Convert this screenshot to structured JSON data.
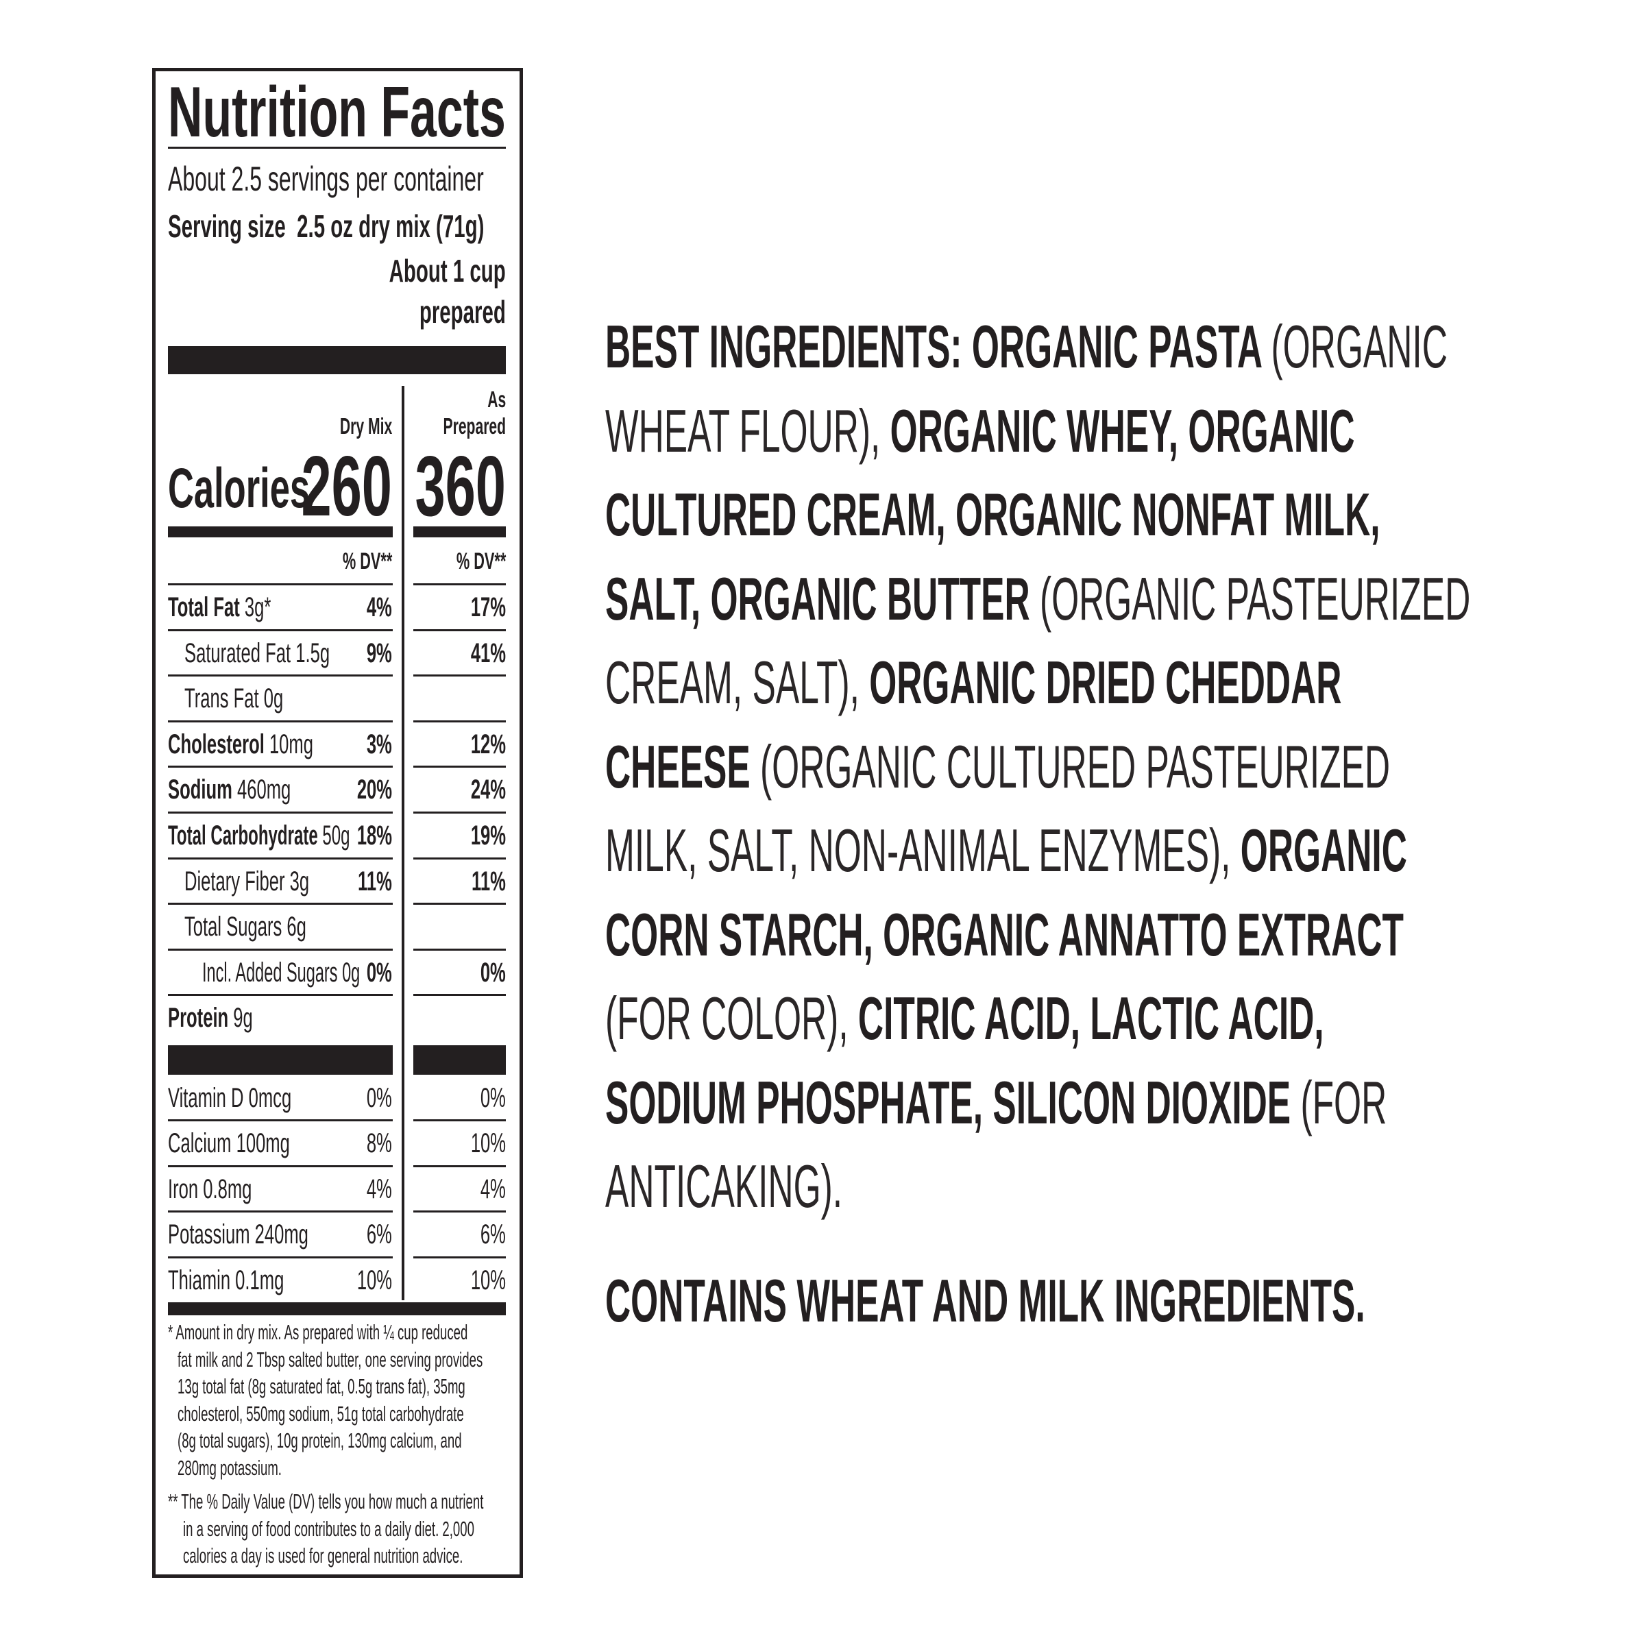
{
  "nutrition": {
    "title": "Nutrition Facts",
    "servings": "About 2.5 servings per container",
    "serving_size_label": "Serving size",
    "serving_size_value": "2.5 oz dry mix (71g)",
    "serving_prepared_1": "About 1 cup",
    "serving_prepared_2": "prepared",
    "col_dry": "Dry Mix",
    "col_prep_1": "As",
    "col_prep_2": "Prepared",
    "calories_label": "Calories",
    "calories_dry": "260",
    "calories_prep": "360",
    "dv_header": "% DV**",
    "rows": [
      {
        "label": "Total Fat",
        "amount": "3g*",
        "dv_dry": "4%",
        "dv_prep": "17%",
        "bold": true,
        "indent": 0
      },
      {
        "label": "Saturated Fat",
        "amount": "1.5g",
        "dv_dry": "9%",
        "dv_prep": "41%",
        "bold": false,
        "indent": 1
      },
      {
        "label": "Trans Fat",
        "amount": "0g",
        "dv_dry": "",
        "dv_prep": "",
        "bold": false,
        "indent": 1
      },
      {
        "label": "Cholesterol",
        "amount": "10mg",
        "dv_dry": "3%",
        "dv_prep": "12%",
        "bold": true,
        "indent": 0
      },
      {
        "label": "Sodium",
        "amount": "460mg",
        "dv_dry": "20%",
        "dv_prep": "24%",
        "bold": true,
        "indent": 0
      },
      {
        "label": "Total Carbohydrate",
        "amount": "50g",
        "dv_dry": "18%",
        "dv_prep": "19%",
        "bold": true,
        "indent": 0
      },
      {
        "label": "Dietary Fiber",
        "amount": "3g",
        "dv_dry": "11%",
        "dv_prep": "11%",
        "bold": false,
        "indent": 1
      },
      {
        "label": "Total Sugars",
        "amount": "6g",
        "dv_dry": "",
        "dv_prep": "",
        "bold": false,
        "indent": 1
      },
      {
        "label": "Incl. Added Sugars",
        "amount": "0g",
        "dv_dry": "0%",
        "dv_prep": "0%",
        "bold": false,
        "indent": 2
      },
      {
        "label": "Protein",
        "amount": "9g",
        "dv_dry": "",
        "dv_prep": "",
        "bold": true,
        "indent": 0
      }
    ],
    "vitamins": [
      {
        "label": "Vitamin D",
        "amount": "0mcg",
        "dv_dry": "0%",
        "dv_prep": "0%"
      },
      {
        "label": "Calcium",
        "amount": "100mg",
        "dv_dry": "8%",
        "dv_prep": "10%"
      },
      {
        "label": "Iron",
        "amount": "0.8mg",
        "dv_dry": "4%",
        "dv_prep": "4%"
      },
      {
        "label": "Potassium",
        "amount": "240mg",
        "dv_dry": "6%",
        "dv_prep": "6%"
      },
      {
        "label": "Thiamin",
        "amount": "0.1mg",
        "dv_dry": "10%",
        "dv_prep": "10%"
      }
    ],
    "footnote_1": [
      "* Amount in dry mix. As prepared with ¼ cup reduced",
      "fat milk and 2 Tbsp salted butter, one serving provides",
      "13g total fat (8g saturated fat, 0.5g trans fat), 35mg",
      "cholesterol, 550mg sodium, 51g total carbohydrate",
      "(8g total sugars), 10g protein, 130mg calcium, and",
      "280mg potassium."
    ],
    "footnote_2": [
      "** The % Daily Value (DV) tells you how much a nutrient",
      "in a serving of food contributes to a daily diet. 2,000",
      "calories a day is used for general nutrition advice."
    ]
  },
  "ingredients": {
    "lines": [
      [
        {
          "t": "BEST INGREDIENTS: ORGANIC PASTA ",
          "b": true
        },
        {
          "t": "(ORGANIC",
          "b": false
        }
      ],
      [
        {
          "t": "WHEAT FLOUR), ",
          "b": false
        },
        {
          "t": "ORGANIC WHEY, ORGANIC",
          "b": true
        }
      ],
      [
        {
          "t": "CULTURED CREAM, ORGANIC NONFAT MILK,",
          "b": true
        }
      ],
      [
        {
          "t": "SALT, ORGANIC BUTTER ",
          "b": true
        },
        {
          "t": "(ORGANIC PASTEURIZED",
          "b": false
        }
      ],
      [
        {
          "t": "CREAM, SALT), ",
          "b": false
        },
        {
          "t": "ORGANIC DRIED CHEDDAR",
          "b": true
        }
      ],
      [
        {
          "t": "CHEESE ",
          "b": true
        },
        {
          "t": "(ORGANIC CULTURED PASTEURIZED",
          "b": false
        }
      ],
      [
        {
          "t": "MILK, SALT, NON-ANIMAL ENZYMES), ",
          "b": false
        },
        {
          "t": "ORGANIC",
          "b": true
        }
      ],
      [
        {
          "t": "CORN STARCH, ORGANIC ANNATTO EXTRACT",
          "b": true
        }
      ],
      [
        {
          "t": "(FOR COLOR), ",
          "b": false
        },
        {
          "t": "CITRIC ACID, LACTIC ACID,",
          "b": true
        }
      ],
      [
        {
          "t": "SODIUM PHOSPHATE, SILICON DIOXIDE ",
          "b": true
        },
        {
          "t": "(FOR",
          "b": false
        }
      ],
      [
        {
          "t": "ANTICAKING).",
          "b": false
        }
      ]
    ],
    "allergens": "CONTAINS WHEAT AND MILK INGREDIENTS."
  }
}
